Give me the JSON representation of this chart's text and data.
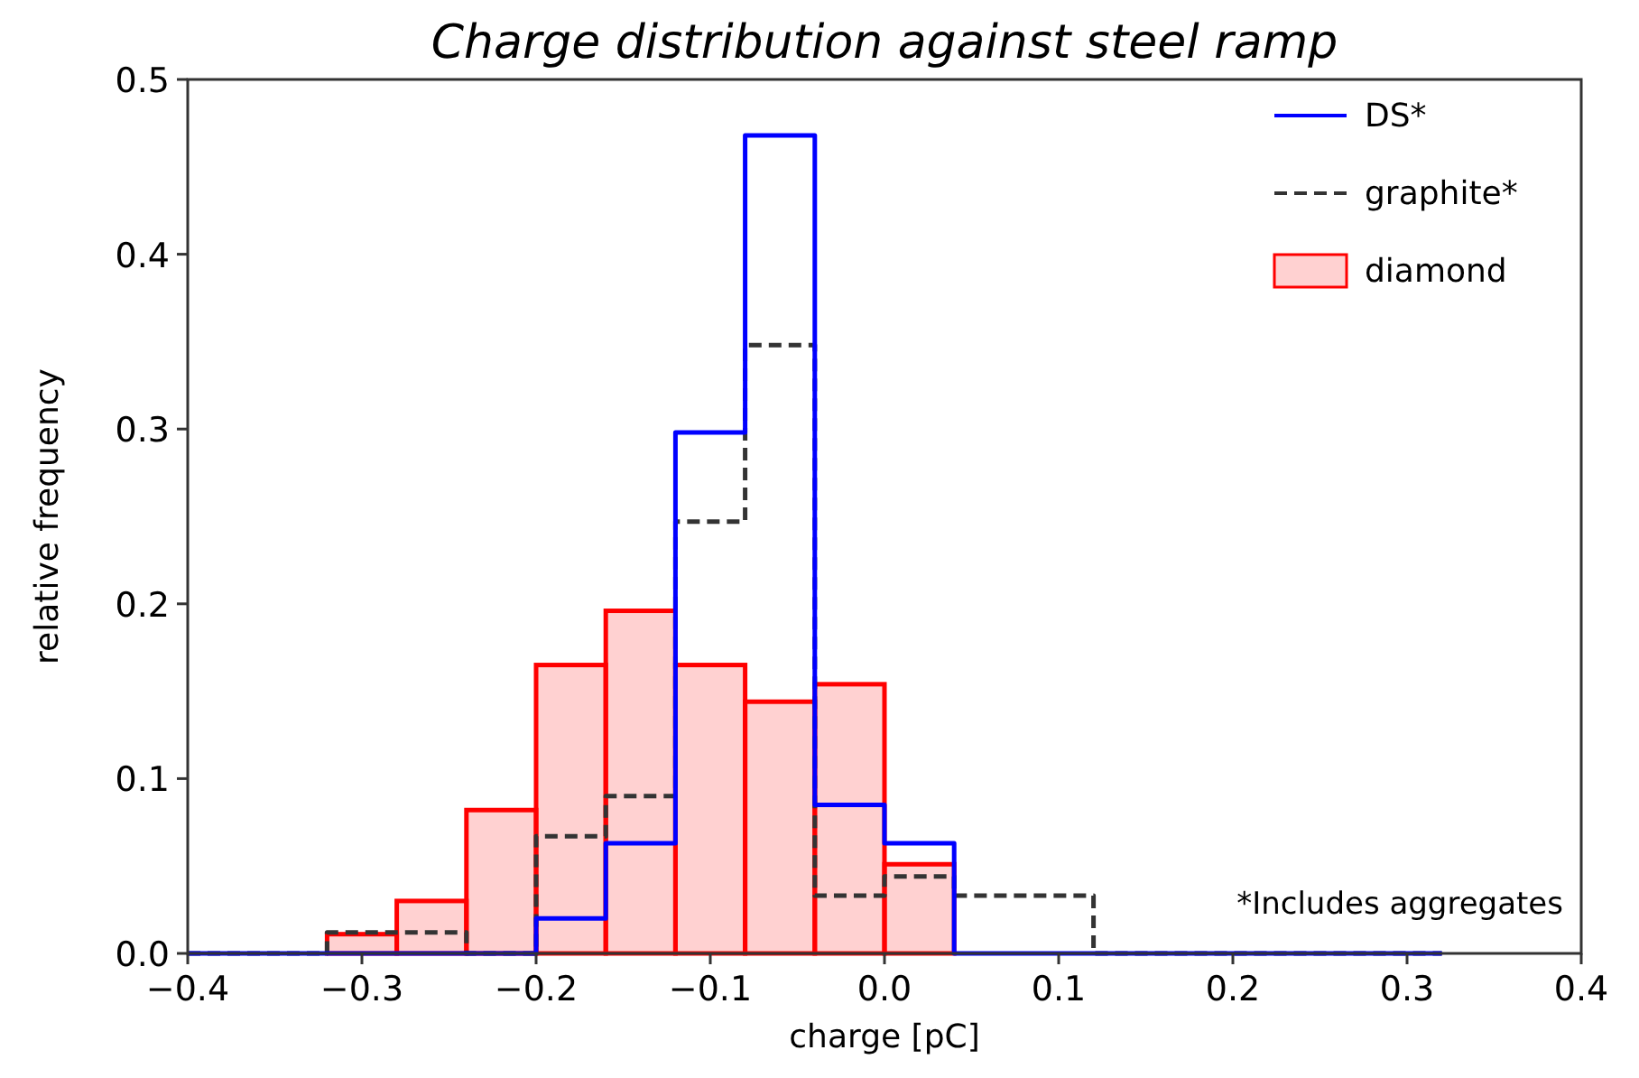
{
  "chart_data": {
    "type": "histogram",
    "title": "Charge distribution against steel ramp",
    "xlabel": "charge [pC]",
    "ylabel": "relative frequency",
    "bins": [
      -0.4,
      -0.36,
      -0.32,
      -0.28,
      -0.24,
      -0.2,
      -0.16,
      -0.12,
      -0.08,
      -0.04,
      0,
      0.04,
      0.08,
      0.12,
      0.16,
      0.2,
      0.24,
      0.28,
      0.32
    ],
    "series": [
      {
        "name": "DS*",
        "color": "#0000ff",
        "line_style": "solid",
        "values": [
          0,
          0,
          0,
          0,
          0,
          0.02,
          0.063,
          0.298,
          0.468,
          0.085,
          0.063,
          0,
          0,
          0,
          0,
          0,
          0,
          0
        ]
      },
      {
        "name": "graphite*",
        "color": "#333333",
        "line_style": "dashed",
        "values": [
          0,
          0,
          0.012,
          0.012,
          0,
          0.067,
          0.09,
          0.247,
          0.348,
          0.033,
          0.044,
          0.033,
          0.033,
          0,
          0,
          0,
          0,
          0
        ]
      },
      {
        "name": "diamond",
        "color": "#ff0000",
        "line_style": "solid",
        "values": [
          0,
          0,
          0.011,
          0.03,
          0.082,
          0.165,
          0.196,
          0.165,
          0.144,
          0.154,
          0.051,
          0,
          0,
          0,
          0,
          0,
          0,
          0
        ]
      }
    ],
    "xlim": [
      -0.4,
      0.4
    ],
    "xticks": [
      {
        "value": -0.4,
        "label": "−0.4"
      },
      {
        "value": -0.3,
        "label": "−0.3"
      },
      {
        "value": -0.2,
        "label": "−0.2"
      },
      {
        "value": -0.1,
        "label": "−0.1"
      },
      {
        "value": 0,
        "label": "0.0"
      },
      0.1,
      0.2,
      0.3,
      0.4
    ],
    "ylim": [
      0,
      0.5
    ],
    "yticks": [
      {
        "value": 0,
        "label": "0.0"
      },
      0.1,
      0.2,
      0.3,
      0.4,
      0.5
    ],
    "legend": "top right",
    "grid": false,
    "annotations": [
      "*Includes aggregates"
    ]
  }
}
